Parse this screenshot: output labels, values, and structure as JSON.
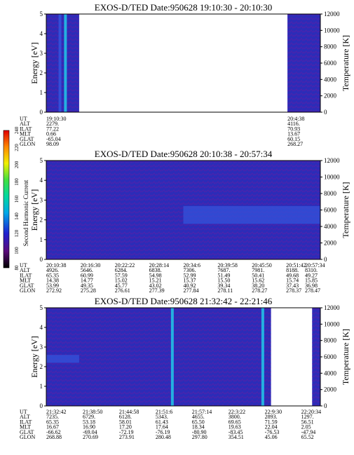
{
  "colors": {
    "background": "#2c2cb8",
    "texture": "#6a1aa0",
    "band_cyan": "#22c8e8",
    "band_blue": "#3355dd"
  },
  "colorbar": {
    "label": "Second Harmonic Current",
    "ticks": [
      "80",
      "100",
      "120",
      "140",
      "160",
      "180",
      "200",
      "220",
      "240"
    ]
  },
  "chart_data": [
    {
      "type": "heatmap",
      "title": "EXOS-D/TED   Date:950628   19:10:30 - 20:10:30",
      "ylabel": "Energy [eV]",
      "y2label": "Temperature [K]",
      "ylim": [
        0,
        5
      ],
      "y2lim": [
        0,
        12000
      ],
      "yticks": [
        "0",
        "1",
        "2",
        "3",
        "4",
        "5"
      ],
      "y2ticks": [
        "0",
        "2000",
        "4000",
        "6000",
        "8000",
        "10000",
        "12000"
      ],
      "row_labels": [
        "UT",
        "ALT",
        "ILAT",
        "MLT",
        "GLAT",
        "GLON"
      ],
      "columns": [
        {
          "values": [
            "19:10:30",
            "2279.",
            "77.22",
            "0.66",
            "-65.04",
            "98.09"
          ]
        },
        {
          "values": [
            "20:4:38",
            "4116.",
            "70.93",
            "13.67",
            "60.15",
            "268.27"
          ]
        }
      ],
      "data_segments": [
        [
          0.0,
          0.12
        ],
        [
          0.88,
          1.0
        ]
      ],
      "features": [
        {
          "kind": "vertical-line",
          "x": 0.07,
          "color": "#22c8e8"
        },
        {
          "kind": "vertical-line",
          "x": 0.05,
          "color": "#3355dd"
        }
      ]
    },
    {
      "type": "heatmap",
      "title": "EXOS-D/TED   Date:950628   20:10:38 - 20:57:34",
      "ylabel": "Energy [eV]",
      "y2label": "Temperature [K]",
      "ylim": [
        0,
        5
      ],
      "y2lim": [
        0,
        12000
      ],
      "yticks": [
        "0",
        "1",
        "2",
        "3",
        "4",
        "5"
      ],
      "y2ticks": [
        "0",
        "2000",
        "4000",
        "6000",
        "8000",
        "10000",
        "12000"
      ],
      "row_labels": [
        "UT",
        "ALT",
        "ILAT",
        "MLT",
        "GLAT",
        "GLON"
      ],
      "columns": [
        {
          "values": [
            "20:10:38",
            "4926.",
            "65.35",
            "14.38",
            "53.99",
            "272.92"
          ]
        },
        {
          "values": [
            "20:16:30",
            "5646.",
            "60.99",
            "14.77",
            "49.35",
            "275.28"
          ]
        },
        {
          "values": [
            "20:22:22",
            "6284.",
            "57.59",
            "15.02",
            "45.77",
            "276.61"
          ]
        },
        {
          "values": [
            "20:28:14",
            "6838.",
            "54.98",
            "15.21",
            "43.02",
            "277.39"
          ]
        },
        {
          "values": [
            "20:34:6",
            "7306.",
            "52.99",
            "15.37",
            "40.92",
            "277.84"
          ]
        },
        {
          "values": [
            "20:39:58",
            "7687.",
            "51.49",
            "15.50",
            "39.34",
            "278.11"
          ]
        },
        {
          "values": [
            "20:45:50",
            "7981.",
            "50.41",
            "15.62",
            "38.20",
            "278.27"
          ]
        },
        {
          "values": [
            "20:51:42",
            "8188.",
            "49.68",
            "15.74",
            "37.43",
            "278.37"
          ]
        },
        {
          "values": [
            "20:57:34",
            "8310.",
            "49.27",
            "15.85",
            "36.98",
            "278.47"
          ]
        }
      ],
      "data_segments": [
        [
          0.0,
          1.0
        ]
      ],
      "features": [
        {
          "kind": "energy-band",
          "x0": 0.5,
          "x1": 1.0,
          "e0": 1.8,
          "e1": 2.7,
          "color": "#3355dd"
        }
      ]
    },
    {
      "type": "heatmap",
      "title": "EXOS-D/TED   Date:950628   21:32:42 - 22:21:46",
      "ylabel": "Energy [eV]",
      "y2label": "Temperature [K]",
      "ylim": [
        0,
        5
      ],
      "y2lim": [
        0,
        12000
      ],
      "yticks": [
        "0",
        "1",
        "2",
        "3",
        "4",
        "5"
      ],
      "y2ticks": [
        "0",
        "2000",
        "4000",
        "6000",
        "8000",
        "10000",
        "12000"
      ],
      "row_labels": [
        "UT",
        "ALT",
        "ILAT",
        "MLT",
        "GLAT",
        "GLON"
      ],
      "columns": [
        {
          "values": [
            "21:32:42",
            "7235.",
            "65.35",
            "16.67",
            "-66.62",
            "268.88"
          ]
        },
        {
          "values": [
            "21:38:50",
            "6729.",
            "53.18",
            "16.90",
            "-69.04",
            "270.69"
          ]
        },
        {
          "values": [
            "21:44:58",
            "6128.",
            "58.01",
            "17.20",
            "-72.19",
            "273.91"
          ]
        },
        {
          "values": [
            "21:51:6",
            "5343.",
            "61.43",
            "17.64",
            "-76.19",
            "280.48"
          ]
        },
        {
          "values": [
            "21:57:14",
            "4655.",
            "65.50",
            "18.34",
            "-80.90",
            "297.80"
          ]
        },
        {
          "values": [
            "22:3:22",
            "3800.",
            "69.65",
            "19.63",
            "-83.45",
            "354.51"
          ]
        },
        {
          "values": [
            "22:9:30",
            "2893.",
            "71.59",
            "22.04",
            "-76.53",
            "45.06"
          ]
        },
        {
          "values": [
            "22:20:34",
            "1297.",
            "56.51",
            "2.05",
            "-47.94",
            "65.52"
          ]
        }
      ],
      "data_segments": [
        [
          0.0,
          0.82
        ],
        [
          0.97,
          1.0
        ]
      ],
      "features": [
        {
          "kind": "vertical-line",
          "x": 0.46,
          "color": "#22c8e8"
        },
        {
          "kind": "vertical-line",
          "x": 0.79,
          "color": "#22c8e8"
        },
        {
          "kind": "energy-band",
          "x0": 0.0,
          "x1": 0.12,
          "e0": 2.2,
          "e1": 2.6,
          "color": "#3355dd"
        }
      ]
    }
  ]
}
